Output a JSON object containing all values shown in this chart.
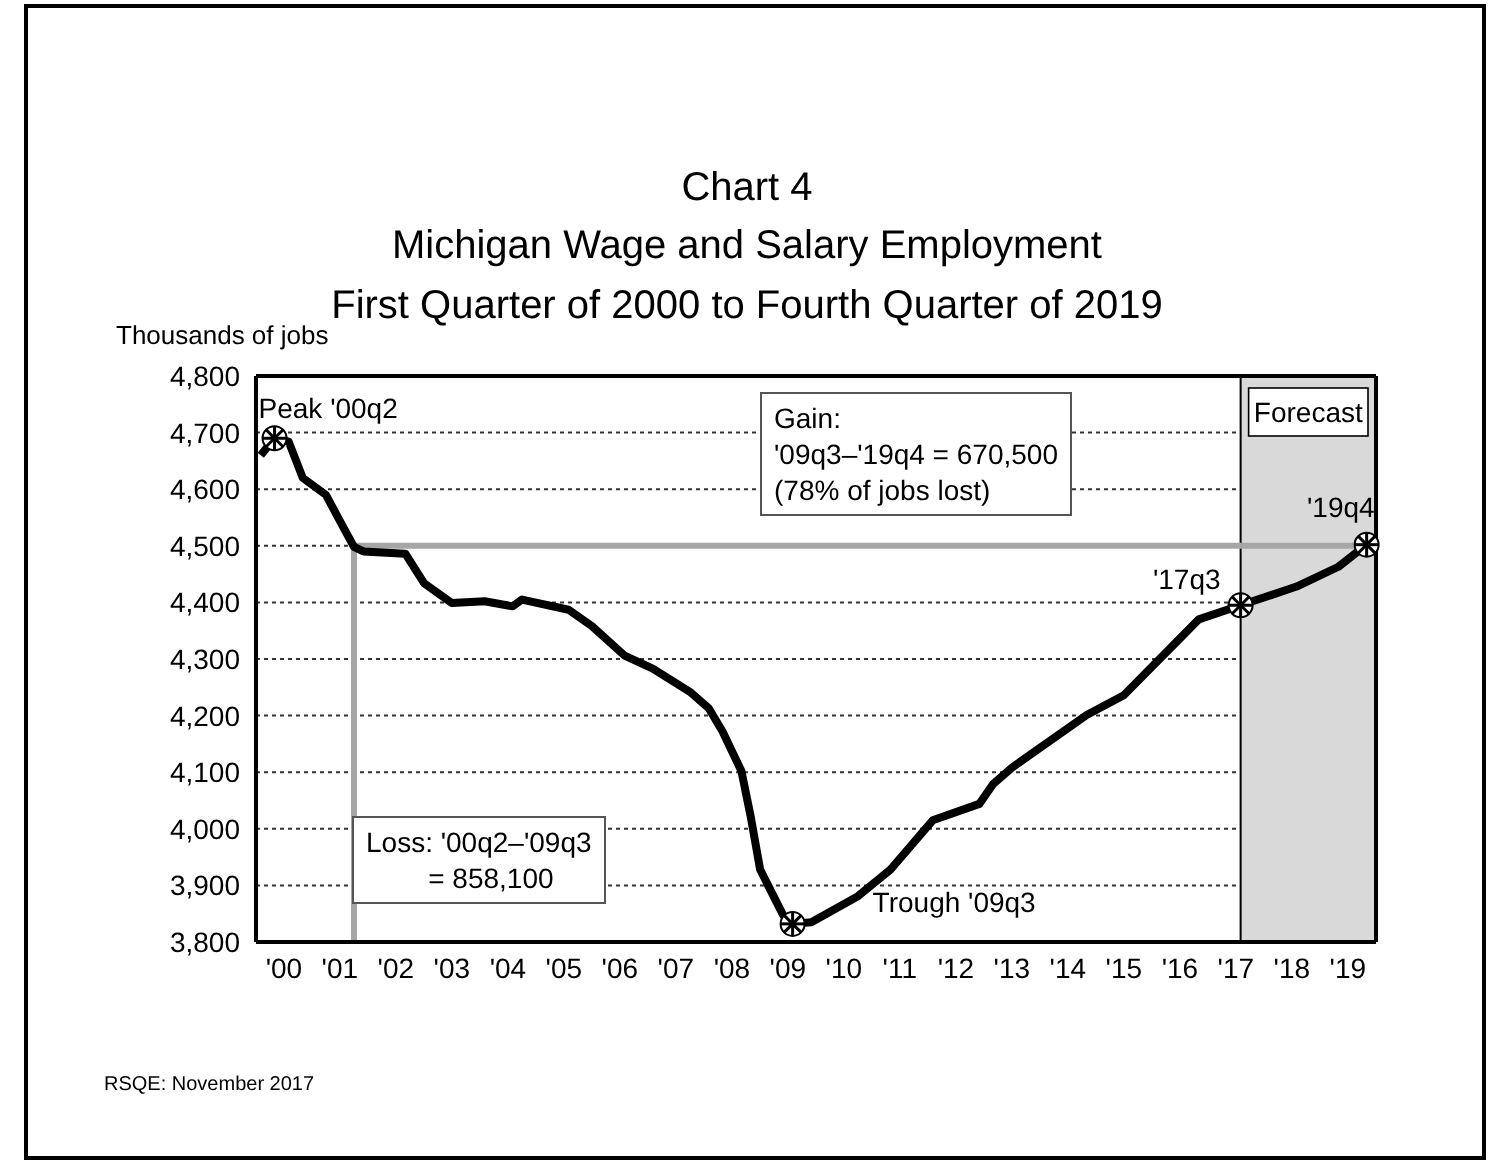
{
  "chart_data": {
    "type": "line",
    "title": "Chart 4",
    "subtitle": "Michigan Wage and Salary Employment\nFirst Quarter of 2000 to Fourth Quarter of 2019",
    "ylabel": "Thousands of jobs",
    "x": [
      "2000-02",
      "2000-05",
      "2000-08",
      "2000-11",
      "2001-04",
      "2001-07",
      "2001-10",
      "2001-12",
      "2002-09",
      "2003-01",
      "2003-07",
      "2004-02",
      "2004-08",
      "2004-10",
      "2005-08",
      "2006-01",
      "2006-08",
      "2007-02",
      "2007-10",
      "2008-02",
      "2008-05",
      "2008-09",
      "2008-11",
      "2009-01",
      "2009-06",
      "2009-08",
      "2009-12",
      "2010-10",
      "2011-05",
      "2012-02",
      "2012-12",
      "2013-03",
      "2013-07",
      "2014-11",
      "2015-07",
      "2016-11",
      "2017-08",
      "2018-08",
      "2019-05",
      "2019-11"
    ],
    "series": [
      {
        "color": "#000000",
        "values": [
          4660,
          4690,
          4684,
          4620,
          4590,
          4544,
          4498,
          4490,
          4486,
          4434,
          4399,
          4402,
          4393,
          4405,
          4387,
          4358,
          4306,
          4283,
          4242,
          4213,
          4172,
          4102,
          4021,
          3928,
          3847,
          3832,
          3835,
          3881,
          3928,
          4015,
          4044,
          4079,
          4108,
          4201,
          4236,
          4370,
          4395,
          4428,
          4463,
          4502
        ]
      }
    ],
    "xlim": [
      "2000-01",
      "2020-01"
    ],
    "xticks": [
      {
        "value": "2000-07",
        "label": "'00"
      },
      {
        "value": "2001-07",
        "label": "'01"
      },
      {
        "value": "2002-07",
        "label": "'02"
      },
      {
        "value": "2003-07",
        "label": "'03"
      },
      {
        "value": "2004-07",
        "label": "'04"
      },
      {
        "value": "2005-07",
        "label": "'05"
      },
      {
        "value": "2006-07",
        "label": "'06"
      },
      {
        "value": "2007-07",
        "label": "'07"
      },
      {
        "value": "2008-07",
        "label": "'08"
      },
      {
        "value": "2009-07",
        "label": "'09"
      },
      {
        "value": "2010-07",
        "label": "'10"
      },
      {
        "value": "2011-07",
        "label": "'11"
      },
      {
        "value": "2012-07",
        "label": "'12"
      },
      {
        "value": "2013-07",
        "label": "'13"
      },
      {
        "value": "2014-07",
        "label": "'14"
      },
      {
        "value": "2015-07",
        "label": "'15"
      },
      {
        "value": "2016-07",
        "label": "'16"
      },
      {
        "value": "2017-07",
        "label": "'17"
      },
      {
        "value": "2018-07",
        "label": "'18"
      },
      {
        "value": "2019-07",
        "label": "'19"
      }
    ],
    "ylim": [
      3800,
      4800
    ],
    "yticks": [
      {
        "value": 3800,
        "label": "3,800"
      },
      {
        "value": 3900,
        "label": "3,900"
      },
      {
        "value": 4000,
        "label": "4,000"
      },
      {
        "value": 4100,
        "label": "4,100"
      },
      {
        "value": 4200,
        "label": "4,200"
      },
      {
        "value": 4300,
        "label": "4,300"
      },
      {
        "value": 4400,
        "label": "4,400"
      },
      {
        "value": 4500,
        "label": "4,500"
      },
      {
        "value": 4600,
        "label": "4,600"
      },
      {
        "value": 4700,
        "label": "4,700"
      },
      {
        "value": 4800,
        "label": "4,800"
      }
    ],
    "grid": "y",
    "marker": "none",
    "line_style": "solid",
    "legend": false,
    "ref_lines": [
      {
        "axis": "y",
        "value": 4500,
        "color": "#a6a6a6"
      },
      {
        "axis": "x",
        "value": "2001-10",
        "color": "#a6a6a6"
      }
    ],
    "bands": [
      {
        "axis": "x",
        "from": "2017-08",
        "to": "2020-01",
        "label": "Forecast",
        "color": "#d9d9d9"
      }
    ],
    "annotations": [
      {
        "text": "Peak '00q2",
        "x": "2000-05",
        "y": 4690
      },
      {
        "text": "Trough '09q3",
        "x": "2009-08",
        "y": 3832
      },
      {
        "text": "'17q3",
        "x": "2017-08",
        "y": 4395
      },
      {
        "text": "'19q4",
        "x": "2019-11",
        "y": 4502
      },
      "Gain:\n'09q3–'19q4 = 670,500\n(78% of jobs lost)",
      "Loss: '00q2–'09q3\n        = 858,100",
      "RSQE: November 2017"
    ]
  }
}
